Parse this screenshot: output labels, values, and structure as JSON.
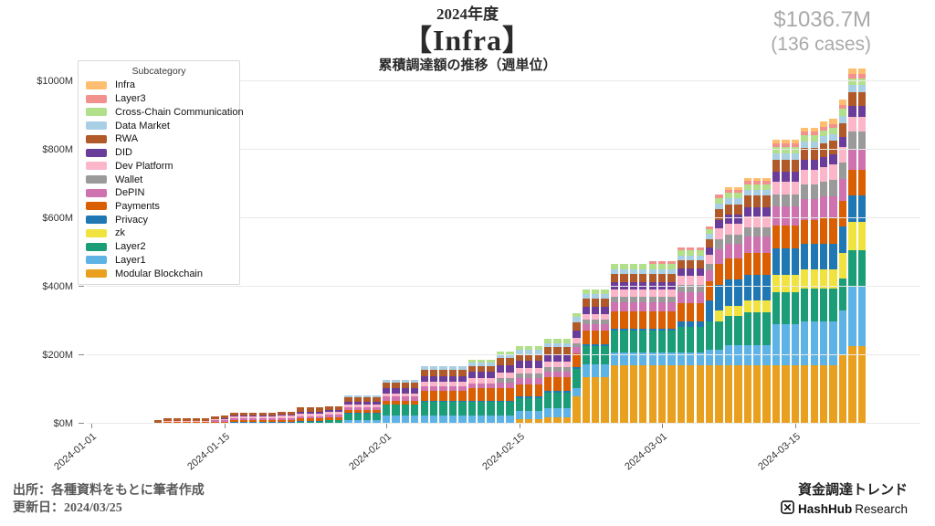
{
  "header": {
    "year": "2024年度",
    "title": "【Infra】",
    "subtitle": "累積調達額の推移（週単位）",
    "total": "$1036.7M",
    "cases": "(136 cases)"
  },
  "legend": {
    "title": "Subcategory"
  },
  "footer": {
    "source": "出所：各種資料をもとに筆者作成",
    "updated": "更新日：2024/03/25",
    "brand": "資金調達トレンド",
    "logo_name": "HashHub",
    "logo_suffix": "Research"
  },
  "chart_data": {
    "type": "bar",
    "stacked": true,
    "unit": "USD millions, cumulative funding",
    "title": "2024年度【Infra】累積調達額の推移（週単位）",
    "total_label": "$1036.7M",
    "total_cases": 136,
    "x_start": "2024-01-01",
    "x_end": "2024-03-22",
    "frequency": "daily",
    "x_ticks": [
      "2024-01-01",
      "2024-01-15",
      "2024-02-01",
      "2024-02-15",
      "2024-03-01",
      "2024-03-15"
    ],
    "y_ticks": [
      {
        "v": 0,
        "label": "$0M"
      },
      {
        "v": 200,
        "label": "$200M"
      },
      {
        "v": 400,
        "label": "$400M"
      },
      {
        "v": 600,
        "label": "$600M"
      },
      {
        "v": 800,
        "label": "$800M"
      },
      {
        "v": 1000,
        "label": "$1000M"
      }
    ],
    "ylim": [
      0,
      1090
    ],
    "legend_position": "upper-left",
    "grid": true,
    "series_note": "legend order top-to-bottom; stacking order is reversed (Modular Blockchain at bottom). steps = [MM-DD, cumulative $M from that date onward]",
    "series": [
      {
        "name": "Infra",
        "color": "#fdbf6f",
        "final": 16,
        "steps": [
          [
            "03-08",
            8
          ],
          [
            "03-13",
            12
          ],
          [
            "03-18",
            16
          ]
        ]
      },
      {
        "name": "Layer3",
        "color": "#f2918d",
        "final": 12,
        "steps": [
          [
            "02-29",
            8
          ],
          [
            "03-07",
            10
          ],
          [
            "03-13",
            11
          ],
          [
            "03-20",
            12
          ]
        ]
      },
      {
        "name": "Cross-Chain Communication",
        "color": "#b2df8a",
        "final": 19,
        "steps": [
          [
            "02-10",
            8
          ],
          [
            "02-15",
            12
          ],
          [
            "02-25",
            14
          ],
          [
            "03-07",
            15
          ],
          [
            "03-13",
            17
          ],
          [
            "03-20",
            19
          ]
        ]
      },
      {
        "name": "Data Market",
        "color": "#a9cfe5",
        "final": 22,
        "steps": [
          [
            "01-28",
            5
          ],
          [
            "02-01",
            8
          ],
          [
            "02-05",
            10
          ],
          [
            "02-13",
            12
          ],
          [
            "02-21",
            14
          ],
          [
            "03-03",
            15
          ],
          [
            "03-07",
            18
          ],
          [
            "03-13",
            20
          ],
          [
            "03-20",
            22
          ]
        ]
      },
      {
        "name": "RWA",
        "color": "#b15928",
        "final": 40,
        "steps": [
          [
            "01-08",
            8
          ],
          [
            "01-23",
            12
          ],
          [
            "01-28",
            14
          ],
          [
            "02-01",
            16
          ],
          [
            "02-05",
            18
          ],
          [
            "02-13",
            20
          ],
          [
            "02-21",
            24
          ],
          [
            "03-07",
            30
          ],
          [
            "03-10",
            34
          ],
          [
            "03-18",
            40
          ]
        ]
      },
      {
        "name": "DID",
        "color": "#6a3d9a",
        "final": 31,
        "steps": [
          [
            "01-15",
            3
          ],
          [
            "01-23",
            5
          ],
          [
            "01-28",
            8
          ],
          [
            "02-01",
            14
          ],
          [
            "02-05",
            18
          ],
          [
            "02-13",
            22
          ],
          [
            "03-07",
            26
          ],
          [
            "03-13",
            29
          ],
          [
            "03-20",
            31
          ]
        ]
      },
      {
        "name": "Dev Platform",
        "color": "#fbb6c9",
        "final": 44,
        "steps": [
          [
            "01-01",
            2
          ],
          [
            "01-14",
            4
          ],
          [
            "01-16",
            6
          ],
          [
            "01-23",
            8
          ],
          [
            "02-01",
            10
          ],
          [
            "02-05",
            12
          ],
          [
            "02-10",
            16
          ],
          [
            "02-25",
            22
          ],
          [
            "03-03",
            26
          ],
          [
            "03-07",
            32
          ],
          [
            "03-13",
            38
          ],
          [
            "03-16",
            44
          ]
        ]
      },
      {
        "name": "Wallet",
        "color": "#9a9a9a",
        "final": 49,
        "steps": [
          [
            "02-13",
            12
          ],
          [
            "02-25",
            16
          ],
          [
            "03-03",
            20
          ],
          [
            "03-07",
            28
          ],
          [
            "03-13",
            35
          ],
          [
            "03-16",
            42
          ],
          [
            "03-19",
            49
          ]
        ]
      },
      {
        "name": "DePIN",
        "color": "#ce72b0",
        "final": 62,
        "steps": [
          [
            "01-14",
            4
          ],
          [
            "01-21",
            6
          ],
          [
            "01-28",
            8
          ],
          [
            "02-01",
            12
          ],
          [
            "02-05",
            14
          ],
          [
            "02-13",
            18
          ],
          [
            "02-25",
            26
          ],
          [
            "03-03",
            32
          ],
          [
            "03-07",
            42
          ],
          [
            "03-10",
            48
          ],
          [
            "03-13",
            55
          ],
          [
            "03-16",
            62
          ]
        ]
      },
      {
        "name": "Payments",
        "color": "#d95f02",
        "final": 76,
        "steps": [
          [
            "01-06",
            2
          ],
          [
            "01-16",
            5
          ],
          [
            "01-23",
            8
          ],
          [
            "02-01",
            10
          ],
          [
            "02-05",
            28
          ],
          [
            "02-10",
            35
          ],
          [
            "02-18",
            40
          ],
          [
            "02-25",
            50
          ],
          [
            "03-03",
            55
          ],
          [
            "03-07",
            62
          ],
          [
            "03-13",
            68
          ],
          [
            "03-18",
            76
          ]
        ]
      },
      {
        "name": "Privacy",
        "color": "#1f78b4",
        "final": 76,
        "steps": [
          [
            "01-16",
            2
          ],
          [
            "02-05",
            5
          ],
          [
            "03-03",
            15
          ],
          [
            "03-06",
            60
          ],
          [
            "03-07",
            76
          ]
        ]
      },
      {
        "name": "zk",
        "color": "#f1e33f",
        "final": 84,
        "steps": [
          [
            "03-07",
            30
          ],
          [
            "03-10",
            35
          ],
          [
            "03-13",
            50
          ],
          [
            "03-16",
            55
          ],
          [
            "03-20",
            75
          ],
          [
            "03-21",
            84
          ]
        ]
      },
      {
        "name": "Layer2",
        "color": "#1b9e77",
        "final": 104,
        "steps": [
          [
            "01-09",
            3
          ],
          [
            "01-14",
            4
          ],
          [
            "01-23",
            6
          ],
          [
            "01-26",
            10
          ],
          [
            "01-28",
            18
          ],
          [
            "02-01",
            30
          ],
          [
            "02-05",
            38
          ],
          [
            "02-18",
            45
          ],
          [
            "02-21",
            55
          ],
          [
            "02-25",
            65
          ],
          [
            "03-03",
            75
          ],
          [
            "03-06",
            85
          ],
          [
            "03-10",
            95
          ],
          [
            "03-21",
            104
          ]
        ]
      },
      {
        "name": "Layer1",
        "color": "#5eb3e6",
        "final": 173.7,
        "steps": [
          [
            "01-28",
            12
          ],
          [
            "02-01",
            25
          ],
          [
            "02-22",
            38
          ],
          [
            "03-06",
            45
          ],
          [
            "03-08",
            60
          ],
          [
            "03-13",
            120
          ],
          [
            "03-16",
            130
          ],
          [
            "03-21",
            173.7
          ]
        ]
      },
      {
        "name": "Modular Blockchain",
        "color": "#e9a01e",
        "final": 228,
        "steps": [
          [
            "02-15",
            13
          ],
          [
            "02-18",
            20
          ],
          [
            "02-21",
            80
          ],
          [
            "02-22",
            135
          ],
          [
            "02-25",
            170
          ],
          [
            "03-20",
            200
          ],
          [
            "03-21",
            228
          ]
        ]
      }
    ]
  }
}
